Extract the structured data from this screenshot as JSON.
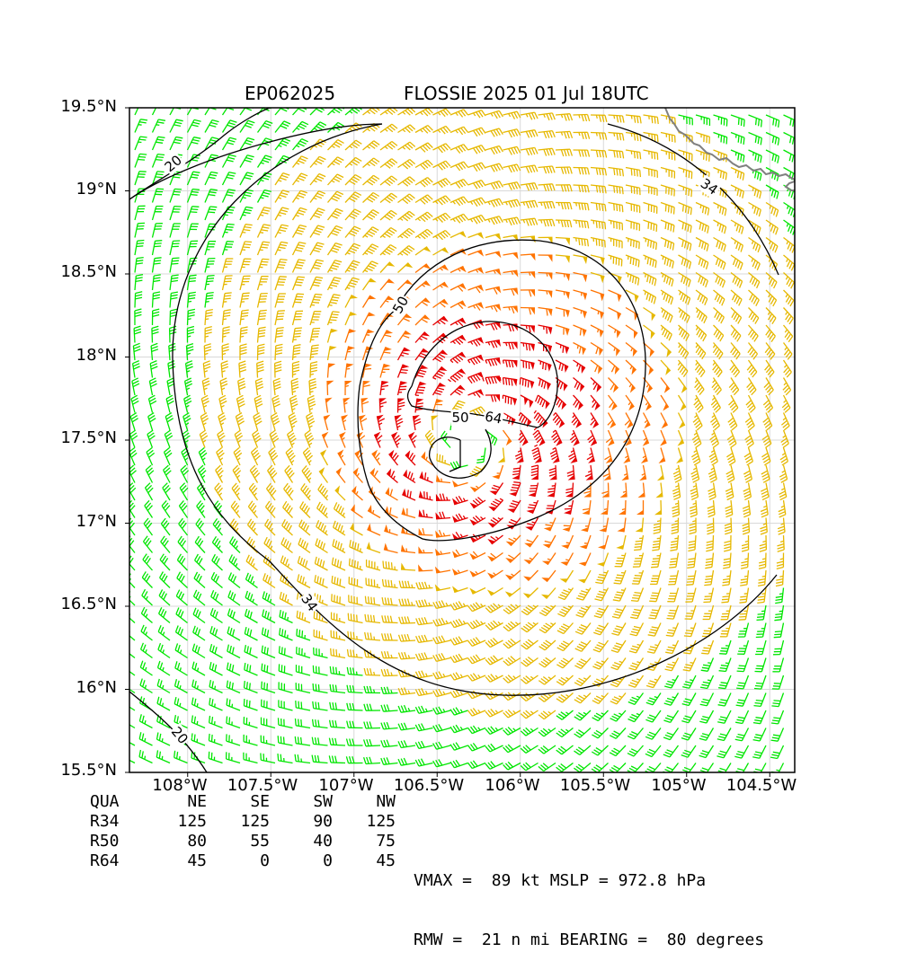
{
  "header": {
    "storm_id": "EP062025",
    "storm_title": "FLOSSIE 2025 01 Jul 18UTC"
  },
  "axes": {
    "lat_ticks": [
      "19.5°N",
      "19°N",
      "18.5°N",
      "18°N",
      "17.5°N",
      "17°N",
      "16.5°N",
      "16°N",
      "15.5°N"
    ],
    "lon_ticks": [
      "108°W",
      "107.5°W",
      "107°W",
      "106.5°W",
      "106°W",
      "105.5°W",
      "105°W",
      "104.5°W"
    ],
    "lat_range": [
      15.5,
      19.5
    ],
    "lon_range": [
      -108.35,
      -104.35
    ]
  },
  "contours": {
    "labels": [
      "20",
      "34",
      "50",
      "64",
      "50",
      "34",
      "20"
    ],
    "line_color": "#000000",
    "coastline_color": "#808080"
  },
  "wind_colors": {
    "below_34": "#00e600",
    "34_to_50": "#e6b800",
    "50_to_64": "#ff7300",
    "above_64": "#e60000",
    "below_20": "#000000"
  },
  "storm": {
    "center_lat": 17.5,
    "center_lon": -106.3,
    "vmax_kt": 89,
    "mslp_hpa": 972.8,
    "rmw_nmi": 21,
    "bearing_deg": 80
  },
  "radii_table": {
    "headers": [
      "QUA",
      "NE",
      "SE",
      "SW",
      "NW"
    ],
    "rows": [
      {
        "label": "R34",
        "ne": "125",
        "se": "125",
        "sw": "90",
        "nw": "125"
      },
      {
        "label": "R50",
        "ne": "80",
        "se": "55",
        "sw": "40",
        "nw": "75"
      },
      {
        "label": "R64",
        "ne": "45",
        "se": "0",
        "sw": "0",
        "nw": "45"
      }
    ]
  },
  "stats": {
    "line1": "VMAX =  89 kt MSLP = 972.8 hPa",
    "line2": "RMW =  21 n mi BEARING =  80 degrees"
  }
}
